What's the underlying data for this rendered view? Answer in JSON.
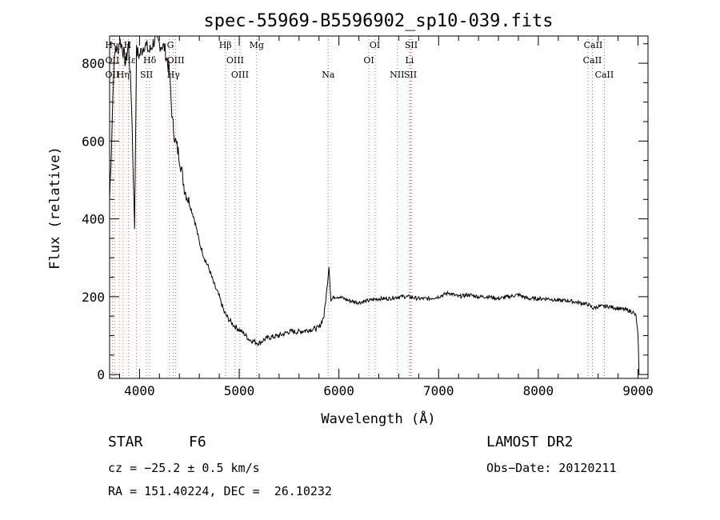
{
  "chart_data": {
    "type": "line",
    "title": "spec-55969-B5596902_sp10-039.fits",
    "xlabel": "Wavelength (Å)",
    "ylabel": "Flux (relative)",
    "xlim": [
      3700,
      9100
    ],
    "ylim": [
      -10,
      870
    ],
    "xticks": [
      4000,
      5000,
      6000,
      7000,
      8000,
      9000
    ],
    "yticks": [
      0,
      200,
      400,
      600,
      800
    ],
    "grid": false,
    "series": [
      {
        "x": [
          3700,
          3720,
          3740,
          3760,
          3780,
          3800,
          3830,
          3860,
          3890,
          3920,
          3950,
          3970,
          4000,
          4050,
          4100,
          4150,
          4200,
          4250,
          4300,
          4330,
          4360,
          4400,
          4450,
          4500,
          4550,
          4600,
          4650,
          4700,
          4750,
          4800,
          4850,
          4900,
          4950,
          5000,
          5050,
          5100,
          5150,
          5200,
          5250,
          5300,
          5400,
          5500,
          5600,
          5700,
          5800,
          5850,
          5880,
          5900,
          5920,
          5950,
          6000,
          6050,
          6100,
          6200,
          6300,
          6400,
          6500,
          6600,
          6700,
          6800,
          6900,
          7000,
          7100,
          7200,
          7300,
          7400,
          7500,
          7600,
          7700,
          7800,
          7900,
          8000,
          8100,
          8200,
          8300,
          8400,
          8500,
          8550,
          8600,
          8700,
          8800,
          8900,
          8950,
          8980,
          9000,
          9010
        ],
        "y": [
          450,
          600,
          780,
          840,
          830,
          860,
          840,
          800,
          850,
          700,
          380,
          830,
          820,
          850,
          830,
          860,
          850,
          840,
          780,
          650,
          600,
          560,
          480,
          440,
          400,
          340,
          300,
          270,
          230,
          200,
          160,
          140,
          125,
          115,
          105,
          90,
          85,
          80,
          90,
          95,
          100,
          110,
          110,
          115,
          120,
          150,
          220,
          280,
          190,
          200,
          200,
          195,
          190,
          185,
          190,
          195,
          195,
          200,
          200,
          195,
          195,
          200,
          210,
          200,
          205,
          200,
          200,
          195,
          200,
          205,
          195,
          195,
          195,
          190,
          190,
          185,
          180,
          170,
          175,
          175,
          170,
          165,
          160,
          150,
          100,
          0
        ]
      }
    ],
    "line_marks": {
      "row1": [
        {
          "label": "Hγ",
          "x": 3720
        },
        {
          "label": "H",
          "x": 3880
        },
        {
          "label": "G",
          "x": 4310
        },
        {
          "label": "Hβ",
          "x": 4861
        },
        {
          "label": "Mg",
          "x": 5175
        },
        {
          "label": "OI",
          "x": 6360
        },
        {
          "label": "SII",
          "x": 6725
        },
        {
          "label": "CaII",
          "x": 8550
        }
      ],
      "row2": [
        {
          "label": "OII",
          "x": 3727
        },
        {
          "label": "Hε",
          "x": 3900
        },
        {
          "label": "Hδ",
          "x": 4102
        },
        {
          "label": "OIII",
          "x": 4363
        },
        {
          "label": "OIII",
          "x": 4959
        },
        {
          "label": "OI",
          "x": 6300
        },
        {
          "label": "Li",
          "x": 6708
        },
        {
          "label": "CaII",
          "x": 8542
        }
      ],
      "row3": [
        {
          "label": "OII",
          "x": 3727
        },
        {
          "label": "Hη",
          "x": 3835
        },
        {
          "label": "SII",
          "x": 4070
        },
        {
          "label": "Hγ",
          "x": 4340
        },
        {
          "label": "OIII",
          "x": 5007
        },
        {
          "label": "Na",
          "x": 5893
        },
        {
          "label": "NII",
          "x": 6583
        },
        {
          "label": "SII",
          "x": 6717
        },
        {
          "label": "CaII",
          "x": 8662
        }
      ],
      "dotted_lines_x": [
        3727,
        3750,
        3797,
        3835,
        3889,
        3970,
        4070,
        4102,
        4300,
        4340,
        4363,
        4861,
        4959,
        5007,
        5175,
        5893,
        6300,
        6363,
        6583,
        6708,
        6717,
        6731,
        8498,
        8542,
        8662
      ]
    }
  },
  "footer": {
    "object": "STAR",
    "subclass": "F6",
    "survey": "LAMOST DR2",
    "cz": "cz = −25.2 ± 0.5 km/s",
    "obs_date": "Obs−Date: 20120211",
    "coords": "RA = 151.40224, DEC =  26.10232"
  }
}
